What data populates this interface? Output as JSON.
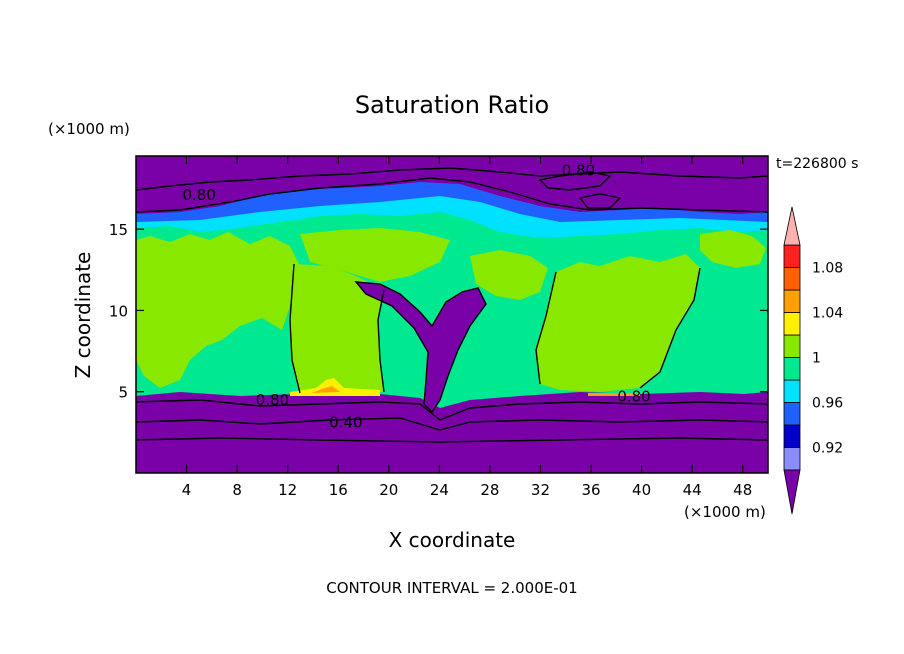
{
  "chart_data": {
    "type": "heatmap",
    "title": "Saturation Ratio",
    "time_label": "t=226800 s",
    "xlabel": "X coordinate",
    "ylabel": "Z coordinate",
    "x_unit": "(×1000 m)",
    "y_unit": "(×1000 m)",
    "footer": "CONTOUR INTERVAL = 2.000E-01",
    "xlim": [
      0,
      50
    ],
    "ylim": [
      0,
      19.5
    ],
    "x_ticks": [
      4,
      8,
      12,
      16,
      20,
      24,
      28,
      32,
      36,
      40,
      44,
      48
    ],
    "y_ticks": [
      5,
      10,
      15
    ],
    "colorbar": {
      "levels": [
        0.9,
        0.92,
        0.94,
        0.96,
        0.98,
        1.0,
        1.02,
        1.04,
        1.06,
        1.08,
        1.1
      ],
      "colors": [
        "#8c8cff",
        "#0000c8",
        "#2060ff",
        "#00e0ff",
        "#00e890",
        "#88e800",
        "#fff000",
        "#ffa000",
        "#ff6000",
        "#ff2020"
      ],
      "under_color": "#7a00a8",
      "over_color": "#ffb0b0",
      "tick_labels": [
        "0.92",
        "0.96",
        "1",
        "1.04",
        "1.08"
      ],
      "tick_values": [
        0.92,
        0.96,
        1.0,
        1.04,
        1.08
      ]
    },
    "contour_labels": [
      {
        "text": "0.80",
        "x": 5,
        "y": 17.1
      },
      {
        "text": "0.80",
        "x": 35,
        "y": 18.6
      },
      {
        "text": "0.80",
        "x": 10.8,
        "y": 4.5
      },
      {
        "text": "0.80",
        "x": 39.4,
        "y": 4.7
      },
      {
        "text": "0.40",
        "x": 16.6,
        "y": 3.1
      }
    ]
  }
}
